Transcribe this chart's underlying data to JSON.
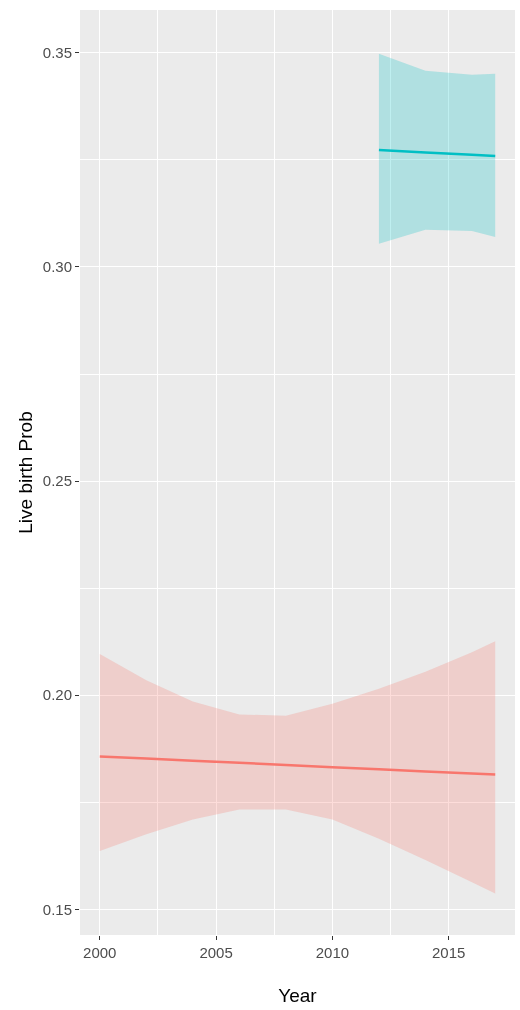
{
  "chart_data": {
    "type": "line",
    "xlabel": "Year",
    "ylabel": "Live birth Prob",
    "xlim": [
      1999.15,
      2017.85
    ],
    "xticks": [
      2000,
      2005,
      2010,
      2015
    ],
    "ylim": [
      0.144,
      0.36
    ],
    "yticks": [
      0.15,
      {
        "value": 0.2,
        "label": "0.20"
      },
      0.25,
      {
        "value": 0.3,
        "label": "0.30"
      },
      0.35
    ],
    "grid": true,
    "marker": "none",
    "line_style": "solid",
    "series": [
      {
        "color": "#f8766d",
        "x": [
          2000,
          2002,
          2004,
          2006,
          2008,
          2010,
          2012,
          2014,
          2016,
          2017
        ],
        "values": [
          0.1857,
          0.1852,
          0.1847,
          0.1842,
          0.1837,
          0.1832,
          0.1827,
          0.1822,
          0.1817,
          0.1815
        ],
        "lower": [
          0.1636,
          0.1675,
          0.171,
          0.1733,
          0.1733,
          0.171,
          0.1665,
          0.1615,
          0.1563,
          0.1537
        ],
        "upper": [
          0.2096,
          0.2035,
          0.1985,
          0.1955,
          0.1952,
          0.198,
          0.2015,
          0.2055,
          0.21,
          0.2126
        ]
      },
      {
        "color": "#00bfc4",
        "x": [
          2012,
          2014,
          2016,
          2017
        ],
        "values": [
          0.3273,
          0.3267,
          0.3262,
          0.3259
        ],
        "lower": [
          0.3054,
          0.3087,
          0.3084,
          0.307
        ],
        "upper": [
          0.3498,
          0.3458,
          0.3449,
          0.3451
        ]
      }
    ]
  }
}
